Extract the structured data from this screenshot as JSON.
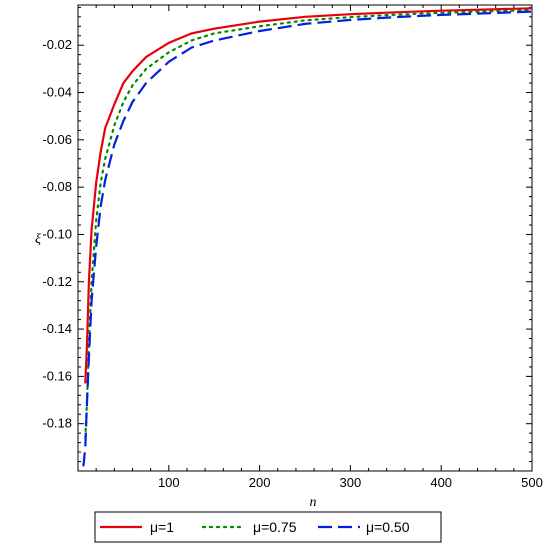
{
  "chart_data": {
    "type": "line",
    "title": "",
    "xlabel": "n",
    "ylabel": "ξ",
    "xlim": [
      0,
      500
    ],
    "ylim": [
      -0.2,
      -0.003
    ],
    "x_ticks": [
      100,
      200,
      300,
      400,
      500
    ],
    "x_tick_labels": [
      "100",
      "200",
      "300",
      "400",
      "500"
    ],
    "y_ticks": [
      -0.02,
      -0.04,
      -0.06,
      -0.08,
      -0.1,
      -0.12,
      -0.14,
      -0.16,
      -0.18
    ],
    "y_tick_labels": [
      "-0.02",
      "-0.04",
      "-0.06",
      "-0.08",
      "-0.10",
      "-0.12",
      "-0.14",
      "-0.16",
      "-0.18"
    ],
    "grid": false,
    "legend_position": "bottom",
    "series": [
      {
        "name": "μ=1",
        "color": "#e8000b",
        "dash": "solid",
        "x": [
          8,
          10,
          12,
          15,
          20,
          25,
          30,
          40,
          50,
          60,
          75,
          100,
          125,
          150,
          200,
          250,
          300,
          350,
          400,
          450,
          500
        ],
        "y": [
          -0.163,
          -0.145,
          -0.12,
          -0.098,
          -0.078,
          -0.065,
          -0.055,
          -0.045,
          -0.036,
          -0.031,
          -0.025,
          -0.019,
          -0.015,
          -0.013,
          -0.01,
          -0.008,
          -0.0069,
          -0.0061,
          -0.0054,
          -0.0049,
          -0.0044
        ]
      },
      {
        "name": "μ=0.75",
        "color": "#008a00",
        "dash": "dotted",
        "x": [
          8,
          10,
          12,
          15,
          20,
          25,
          30,
          40,
          50,
          60,
          75,
          100,
          125,
          150,
          200,
          250,
          300,
          350,
          400,
          450,
          500
        ],
        "y": [
          -0.186,
          -0.17,
          -0.146,
          -0.12,
          -0.094,
          -0.078,
          -0.068,
          -0.054,
          -0.044,
          -0.037,
          -0.03,
          -0.023,
          -0.018,
          -0.015,
          -0.012,
          -0.0095,
          -0.0081,
          -0.0071,
          -0.0063,
          -0.0057,
          -0.0052
        ]
      },
      {
        "name": "μ=0.50",
        "color": "#0022e0",
        "dash": "dashed",
        "x": [
          6,
          8,
          10,
          12,
          15,
          20,
          25,
          30,
          40,
          50,
          60,
          75,
          100,
          125,
          150,
          200,
          250,
          300,
          350,
          400,
          450,
          500
        ],
        "y": [
          -0.198,
          -0.19,
          -0.17,
          -0.152,
          -0.128,
          -0.105,
          -0.088,
          -0.077,
          -0.062,
          -0.052,
          -0.044,
          -0.036,
          -0.027,
          -0.021,
          -0.018,
          -0.014,
          -0.011,
          -0.0093,
          -0.0081,
          -0.0072,
          -0.0065,
          -0.0058
        ]
      }
    ]
  }
}
